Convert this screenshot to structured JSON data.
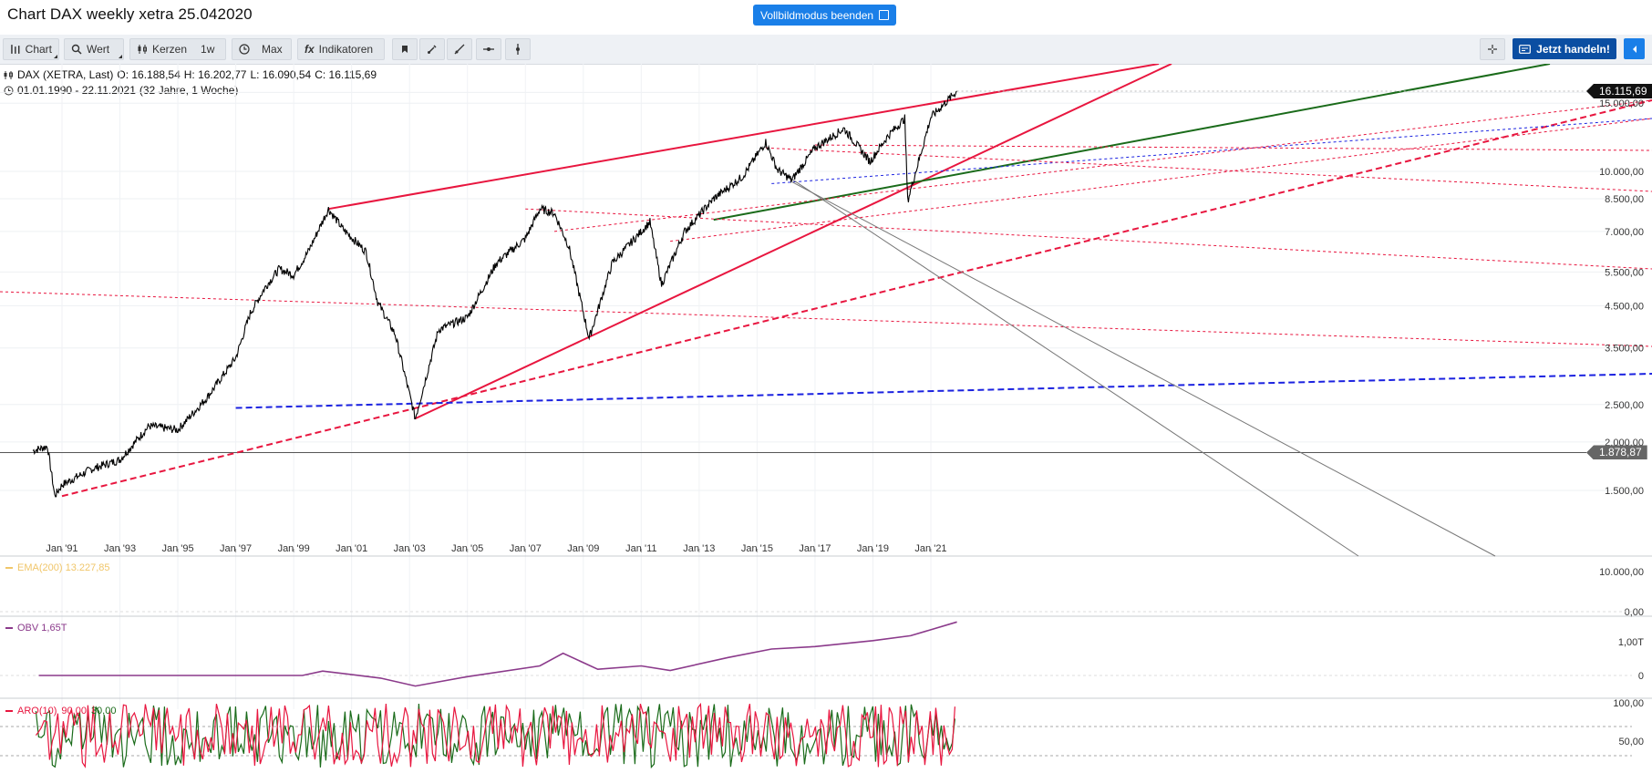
{
  "header": {
    "title": "Chart DAX weekly xetra 25.042020",
    "fullscreen_exit": "Vollbildmodus beenden"
  },
  "toolbar": {
    "chart": "Chart",
    "wert": "Wert",
    "kerzen": "Kerzen",
    "interval": "1w",
    "range": "Max",
    "indikatoren": "Indikatoren",
    "trade": "Jetzt handeln!"
  },
  "legend": {
    "symbol": "DAX (XETRA, Last)",
    "open": "O: 16.188,54",
    "high": "H: 16.202,77",
    "low": "L: 16.090,54",
    "close": "C: 16.115,69",
    "daterange": "01.01.1990 - 22.11.2021",
    "duration": "(32 Jahre, 1 Woche)"
  },
  "badges": {
    "last": "16.115,69",
    "crosshair": "1.878,87"
  },
  "indicators": {
    "ema": "EMA(200) 13.227,85",
    "obv": "OBV  1,65T",
    "aro_name": "ARO(10)",
    "aro_up": "90,00",
    "aro_down": "30,00"
  },
  "colors": {
    "up_line": "#e8163f",
    "blue": "#1b22e0",
    "green": "#1a6b1a",
    "obv": "#8b3a8b",
    "aro_up": "#e8163f",
    "aro_down": "#1a6b1a",
    "ema": "#f0c66a"
  },
  "chart_data": [
    {
      "type": "line",
      "scale": "log",
      "series_name": "DAX (XETRA, Last)",
      "y_ticks": [
        "16.000,00",
        "15.000,00",
        "10.000,00",
        "8.500,00",
        "7.000,00",
        "5.500,00",
        "4.500,00",
        "3.500,00",
        "2.500,00",
        "2.000,00",
        "1.500,00"
      ],
      "x_ticks": [
        "Jan '91",
        "Jan '93",
        "Jan '95",
        "Jan '97",
        "Jan '99",
        "Jan '01",
        "Jan '03",
        "Jan '05",
        "Jan '07",
        "Jan '09",
        "Jan '11",
        "Jan '13",
        "Jan '15",
        "Jan '17",
        "Jan '19",
        "Jan '21"
      ],
      "x": [
        1990.0,
        1990.5,
        1990.75,
        1991.0,
        1992.0,
        1993.0,
        1994.0,
        1995.0,
        1996.0,
        1997.0,
        1997.5,
        1998.0,
        1998.5,
        1999.0,
        1999.5,
        2000.2,
        2000.7,
        2001.5,
        2001.9,
        2002.5,
        2003.2,
        2004.0,
        2005.0,
        2006.0,
        2007.0,
        2007.5,
        2008.0,
        2008.5,
        2009.2,
        2010.0,
        2011.3,
        2011.7,
        2012.5,
        2013.5,
        2014.5,
        2015.3,
        2015.7,
        2016.2,
        2017.0,
        2018.0,
        2018.9,
        2019.5,
        2020.1,
        2020.2,
        2021.0,
        2021.9
      ],
      "y": [
        1900,
        1950,
        1450,
        1550,
        1700,
        1800,
        2200,
        2150,
        2600,
        3300,
        4300,
        5000,
        5600,
        5400,
        6200,
        8000,
        7100,
        6200,
        4600,
        3800,
        2300,
        3900,
        4200,
        5800,
        6700,
        8000,
        7800,
        6400,
        3700,
        5800,
        7400,
        5100,
        7000,
        8500,
        9700,
        11900,
        10100,
        9500,
        11500,
        12900,
        10600,
        12300,
        13700,
        8400,
        13800,
        16115
      ]
    },
    {
      "type": "line",
      "series_name": "OBV",
      "y_ticks": [
        "1,00T",
        "0"
      ]
    },
    {
      "type": "line",
      "series_name": "ARO(10)",
      "y_ticks": [
        "100,00",
        "50,00"
      ]
    },
    {
      "type": "line",
      "series_name": "EMA(200)",
      "y_ticks": [
        "10.000,00",
        "0,00"
      ]
    }
  ]
}
